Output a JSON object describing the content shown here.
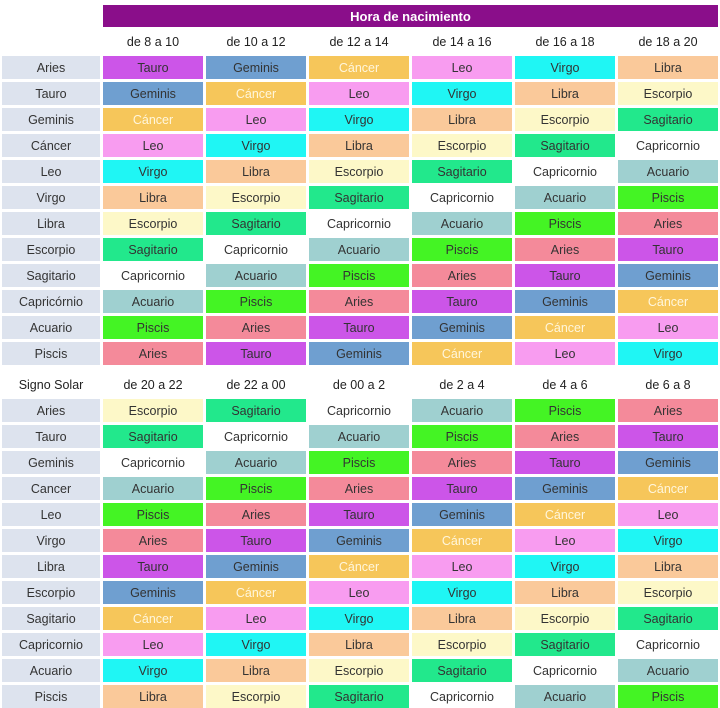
{
  "title": "Hora de nacimiento",
  "colors": {
    "Aries": "#f48a9a",
    "Tauro": "#cc55e8",
    "Geminis": "#6f9fd0",
    "Cáncer": "#f6c65a",
    "Cancer": "#f6c65a",
    "Leo": "#f89cf0",
    "Virgo": "#1ff6f4",
    "Libra": "#fac99a",
    "Escorpio": "#fdf8c8",
    "Sagitario": "#22e88c",
    "Capricornio": "#ffffff",
    "Acuario": "#9fd0d0",
    "Piscis": "#44f424"
  },
  "light_text_signs": [
    "Cáncer",
    "Cancer"
  ],
  "tables": [
    {
      "corner": "",
      "headers": [
        "de 8 a 10",
        "de 10 a 12",
        "de 12 a 14",
        "de 14 a 16",
        "de 16 a 18",
        "de 18 a 20"
      ],
      "rows": [
        {
          "sign": "Aries",
          "cells": [
            "Tauro",
            "Geminis",
            "Cáncer",
            "Leo",
            "Virgo",
            "Libra"
          ]
        },
        {
          "sign": "Tauro",
          "cells": [
            "Geminis",
            "Cáncer",
            "Leo",
            "Virgo",
            "Libra",
            "Escorpio"
          ]
        },
        {
          "sign": "Geminis",
          "cells": [
            "Cáncer",
            "Leo",
            "Virgo",
            "Libra",
            "Escorpio",
            "Sagitario"
          ]
        },
        {
          "sign": "Cáncer",
          "cells": [
            "Leo",
            "Virgo",
            "Libra",
            "Escorpio",
            "Sagitario",
            "Capricornio"
          ]
        },
        {
          "sign": "Leo",
          "cells": [
            "Virgo",
            "Libra",
            "Escorpio",
            "Sagitario",
            "Capricornio",
            "Acuario"
          ]
        },
        {
          "sign": "Virgo",
          "cells": [
            "Libra",
            "Escorpio",
            "Sagitario",
            "Capricornio",
            "Acuario",
            "Piscis"
          ]
        },
        {
          "sign": "Libra",
          "cells": [
            "Escorpio",
            "Sagitario",
            "Capricornio",
            "Acuario",
            "Piscis",
            "Aries"
          ]
        },
        {
          "sign": "Escorpio",
          "cells": [
            "Sagitario",
            "Capricornio",
            "Acuario",
            "Piscis",
            "Aries",
            "Tauro"
          ]
        },
        {
          "sign": "Sagitario",
          "cells": [
            "Capricornio",
            "Acuario",
            "Piscis",
            "Aries",
            "Tauro",
            "Geminis"
          ]
        },
        {
          "sign": "Capricórnio",
          "cells": [
            "Acuario",
            "Piscis",
            "Aries",
            "Tauro",
            "Geminis",
            "Cáncer"
          ]
        },
        {
          "sign": "Acuario",
          "cells": [
            "Piscis",
            "Aries",
            "Tauro",
            "Geminis",
            "Cáncer",
            "Leo"
          ]
        },
        {
          "sign": "Piscis",
          "cells": [
            "Aries",
            "Tauro",
            "Geminis",
            "Cáncer",
            "Leo",
            "Virgo"
          ]
        }
      ]
    },
    {
      "corner": "Signo Solar",
      "headers": [
        "de 20 a 22",
        "de 22 a 00",
        "de 00 a 2",
        "de 2 a 4",
        "de 4 a 6",
        "de 6 a 8"
      ],
      "rows": [
        {
          "sign": "Aries",
          "cells": [
            "Escorpio",
            "Sagitario",
            "Capricornio",
            "Acuario",
            "Piscis",
            "Aries"
          ]
        },
        {
          "sign": "Tauro",
          "cells": [
            "Sagitario",
            "Capricornio",
            "Acuario",
            "Piscis",
            "Aries",
            "Tauro"
          ]
        },
        {
          "sign": "Geminis",
          "cells": [
            "Capricornio",
            "Acuario",
            "Piscis",
            "Aries",
            "Tauro",
            "Geminis"
          ]
        },
        {
          "sign": "Cancer",
          "cells": [
            "Acuario",
            "Piscis",
            "Aries",
            "Tauro",
            "Geminis",
            "Cáncer"
          ]
        },
        {
          "sign": "Leo",
          "cells": [
            "Piscis",
            "Aries",
            "Tauro",
            "Geminis",
            "Cáncer",
            "Leo"
          ]
        },
        {
          "sign": "Virgo",
          "cells": [
            "Aries",
            "Tauro",
            "Geminis",
            "Cáncer",
            "Leo",
            "Virgo"
          ]
        },
        {
          "sign": "Libra",
          "cells": [
            "Tauro",
            "Geminis",
            "Cáncer",
            "Leo",
            "Virgo",
            "Libra"
          ]
        },
        {
          "sign": "Escorpio",
          "cells": [
            "Geminis",
            "Cáncer",
            "Leo",
            "Virgo",
            "Libra",
            "Escorpio"
          ]
        },
        {
          "sign": "Sagitario",
          "cells": [
            "Cáncer",
            "Leo",
            "Virgo",
            "Libra",
            "Escorpio",
            "Sagitario"
          ]
        },
        {
          "sign": "Capricornio",
          "cells": [
            "Leo",
            "Virgo",
            "Libra",
            "Escorpio",
            "Sagitario",
            "Capricornio"
          ]
        },
        {
          "sign": "Acuario",
          "cells": [
            "Virgo",
            "Libra",
            "Escorpio",
            "Sagitario",
            "Capricornio",
            "Acuario"
          ]
        },
        {
          "sign": "Piscis",
          "cells": [
            "Libra",
            "Escorpio",
            "Sagitario",
            "Capricornio",
            "Acuario",
            "Piscis"
          ]
        }
      ]
    }
  ]
}
